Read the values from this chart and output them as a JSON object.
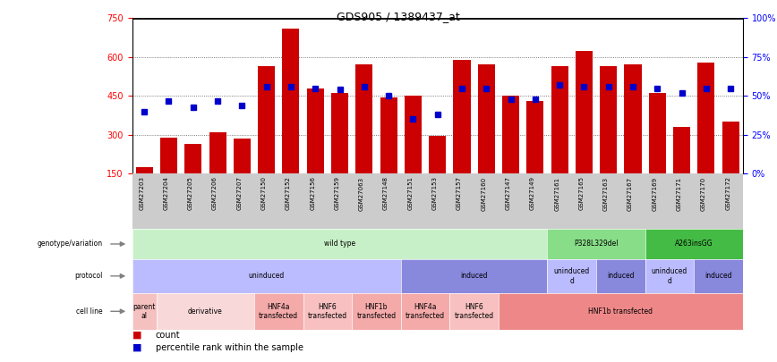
{
  "title": "GDS905 / 1389437_at",
  "samples": [
    "GSM27203",
    "GSM27204",
    "GSM27205",
    "GSM27206",
    "GSM27207",
    "GSM27150",
    "GSM27152",
    "GSM27156",
    "GSM27159",
    "GSM27063",
    "GSM27148",
    "GSM27151",
    "GSM27153",
    "GSM27157",
    "GSM27160",
    "GSM27147",
    "GSM27149",
    "GSM27161",
    "GSM27165",
    "GSM27163",
    "GSM27167",
    "GSM27169",
    "GSM27171",
    "GSM27170",
    "GSM27172"
  ],
  "counts": [
    175,
    290,
    265,
    310,
    285,
    565,
    710,
    480,
    460,
    570,
    445,
    450,
    295,
    590,
    570,
    450,
    430,
    565,
    625,
    565,
    570,
    460,
    330,
    580,
    350
  ],
  "percentiles": [
    40,
    47,
    43,
    47,
    44,
    56,
    56,
    55,
    54,
    56,
    50,
    35,
    38,
    55,
    55,
    48,
    48,
    57,
    56,
    56,
    56,
    55,
    52,
    55,
    55
  ],
  "ylim_left": [
    150,
    750
  ],
  "ylim_right": [
    0,
    100
  ],
  "yticks_left": [
    150,
    300,
    450,
    600,
    750
  ],
  "yticks_right": [
    0,
    25,
    50,
    75,
    100
  ],
  "bar_color": "#cc0000",
  "dot_color": "#0000cc",
  "grid_color": "#888888",
  "xtick_bg": "#cccccc",
  "genotype_labels": [
    {
      "text": "wild type",
      "start": 0,
      "end": 17,
      "color": "#c8f0c8"
    },
    {
      "text": "P328L329del",
      "start": 17,
      "end": 21,
      "color": "#88dd88"
    },
    {
      "text": "A263insGG",
      "start": 21,
      "end": 25,
      "color": "#44bb44"
    }
  ],
  "protocol_labels": [
    {
      "text": "uninduced",
      "start": 0,
      "end": 11,
      "color": "#bbbbff"
    },
    {
      "text": "induced",
      "start": 11,
      "end": 17,
      "color": "#8888dd"
    },
    {
      "text": "uninduced\nd",
      "start": 17,
      "end": 19,
      "color": "#bbbbff"
    },
    {
      "text": "induced",
      "start": 19,
      "end": 21,
      "color": "#8888dd"
    },
    {
      "text": "uninduced\nd",
      "start": 21,
      "end": 23,
      "color": "#bbbbff"
    },
    {
      "text": "induced",
      "start": 23,
      "end": 25,
      "color": "#8888dd"
    }
  ],
  "cellline_labels": [
    {
      "text": "parent\nal",
      "start": 0,
      "end": 1,
      "color": "#f5c0c0"
    },
    {
      "text": "derivative",
      "start": 1,
      "end": 5,
      "color": "#f8d8d8"
    },
    {
      "text": "HNF4a\ntransfected",
      "start": 5,
      "end": 7,
      "color": "#f5aaaa"
    },
    {
      "text": "HNF6\ntransfected",
      "start": 7,
      "end": 9,
      "color": "#f8c0c0"
    },
    {
      "text": "HNF1b\ntransfected",
      "start": 9,
      "end": 11,
      "color": "#f5aaaa"
    },
    {
      "text": "HNF4a\ntransfected",
      "start": 11,
      "end": 13,
      "color": "#f5aaaa"
    },
    {
      "text": "HNF6\ntransfected",
      "start": 13,
      "end": 15,
      "color": "#f8c0c0"
    },
    {
      "text": "HNF1b transfected",
      "start": 15,
      "end": 25,
      "color": "#ee8888"
    }
  ],
  "row_labels": [
    "genotype/variation",
    "protocol",
    "cell line"
  ],
  "legend_count_color": "#cc0000",
  "legend_pct_color": "#0000cc"
}
